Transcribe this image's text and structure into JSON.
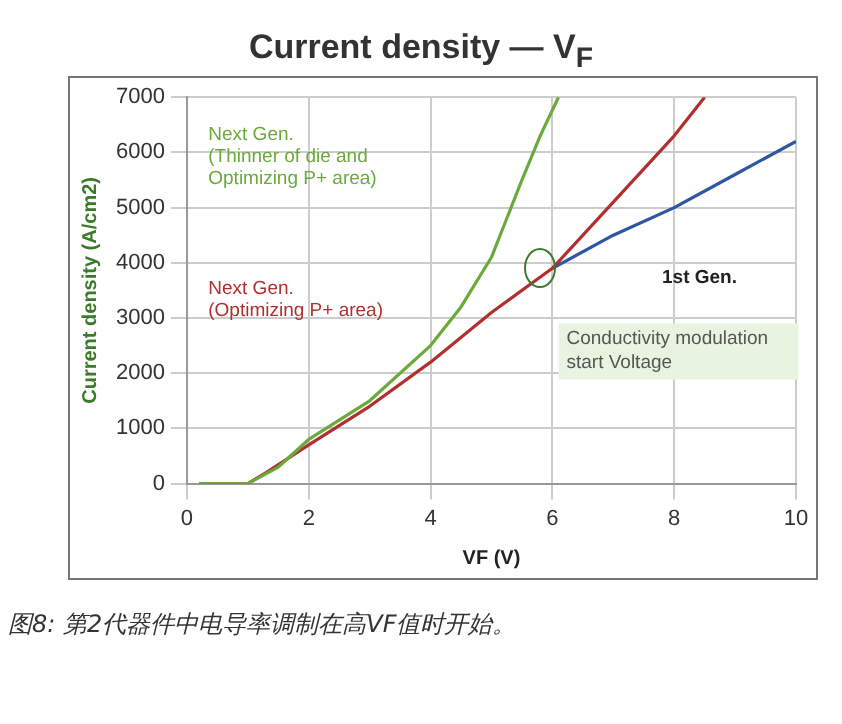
{
  "chart_data": {
    "type": "line",
    "title": "Current density — V$_{F}$",
    "xlabel": "VF (V)",
    "ylabel": "Current density (A/cm2)",
    "xlim": [
      0,
      10
    ],
    "xticks": [
      0,
      2,
      4,
      6,
      8,
      10
    ],
    "ylim": [
      0,
      7000
    ],
    "yticks": [
      0,
      1000,
      2000,
      3000,
      4000,
      5000,
      6000,
      7000
    ],
    "grid": true,
    "legend": false,
    "marker": "none",
    "line_style": "solid",
    "series": [
      {
        "name": "Next Gen.\n(Thinner of die and\nOptimizing P+ area)",
        "color": "#6aaa3a",
        "x": [
          0.2,
          1.0,
          1.5,
          2,
          3,
          4,
          4.5,
          5,
          5.5,
          5.8,
          6.1
        ],
        "values": [
          0,
          0,
          300,
          800,
          1500,
          2500,
          3200,
          4100,
          5500,
          6300,
          7000
        ]
      },
      {
        "name": "Next Gen.\n(Optimizing P+ area)",
        "color": "#b03030",
        "x": [
          0.2,
          1.0,
          1.3,
          2,
          3,
          4,
          5,
          6,
          7,
          8,
          8.5
        ],
        "values": [
          0,
          0,
          200,
          700,
          1400,
          2200,
          3100,
          3900,
          5100,
          6300,
          7000
        ]
      },
      {
        "name": "1st Gen.",
        "color": "#2f56a0",
        "x": [
          6,
          7,
          8,
          9,
          10
        ],
        "values": [
          3900,
          4500,
          5000,
          5600,
          6200
        ]
      }
    ],
    "annotations": [
      "Conductivity modulation start Voltage",
      "图8: 第2代器件中电导率调制在高VF值时开始。"
    ]
  }
}
